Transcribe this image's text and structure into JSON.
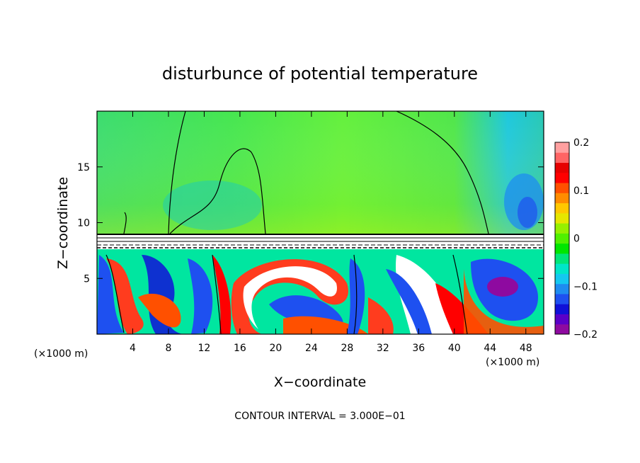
{
  "chart_data": {
    "type": "heatmap",
    "title": "disturbunce of potential temperature",
    "xlabel": "X−coordinate",
    "ylabel": "Z−coordinate",
    "x_unit": "(×1000 m)",
    "xlim": [
      0,
      50
    ],
    "ylim": [
      0,
      20
    ],
    "x_ticks": [
      4,
      8,
      12,
      16,
      20,
      24,
      28,
      32,
      36,
      40,
      44,
      48
    ],
    "y_ticks": [
      5,
      10,
      15
    ],
    "colorbar": {
      "range": [
        -0.2,
        0.2
      ],
      "ticks": [
        {
          "value": 0.2,
          "label": "0.2"
        },
        {
          "value": 0.1,
          "label": "0.1"
        },
        {
          "value": 0.0,
          "label": "0"
        },
        {
          "value": -0.1,
          "label": "−0.1"
        },
        {
          "value": -0.2,
          "label": "−0.2"
        }
      ],
      "colors": [
        "#8e0aa0",
        "#5a00c8",
        "#1010d8",
        "#1e50f0",
        "#1e8cf0",
        "#14c8f0",
        "#00e6c8",
        "#00e678",
        "#00e600",
        "#50f000",
        "#96f000",
        "#e6e600",
        "#ffc800",
        "#ff8c00",
        "#ff5000",
        "#ff0000",
        "#e60000",
        "#ff6464",
        "#ffa0a0"
      ]
    },
    "contour_interval": "CONTOUR INTERVAL = 3.000E−01"
  },
  "colors": {
    "background": "#ffffff",
    "upper_field": "#32e650",
    "upper_field_light": "#78f03c",
    "cold": "#1e50f0",
    "warm": "#ff3c1e",
    "frame": "#000000"
  }
}
